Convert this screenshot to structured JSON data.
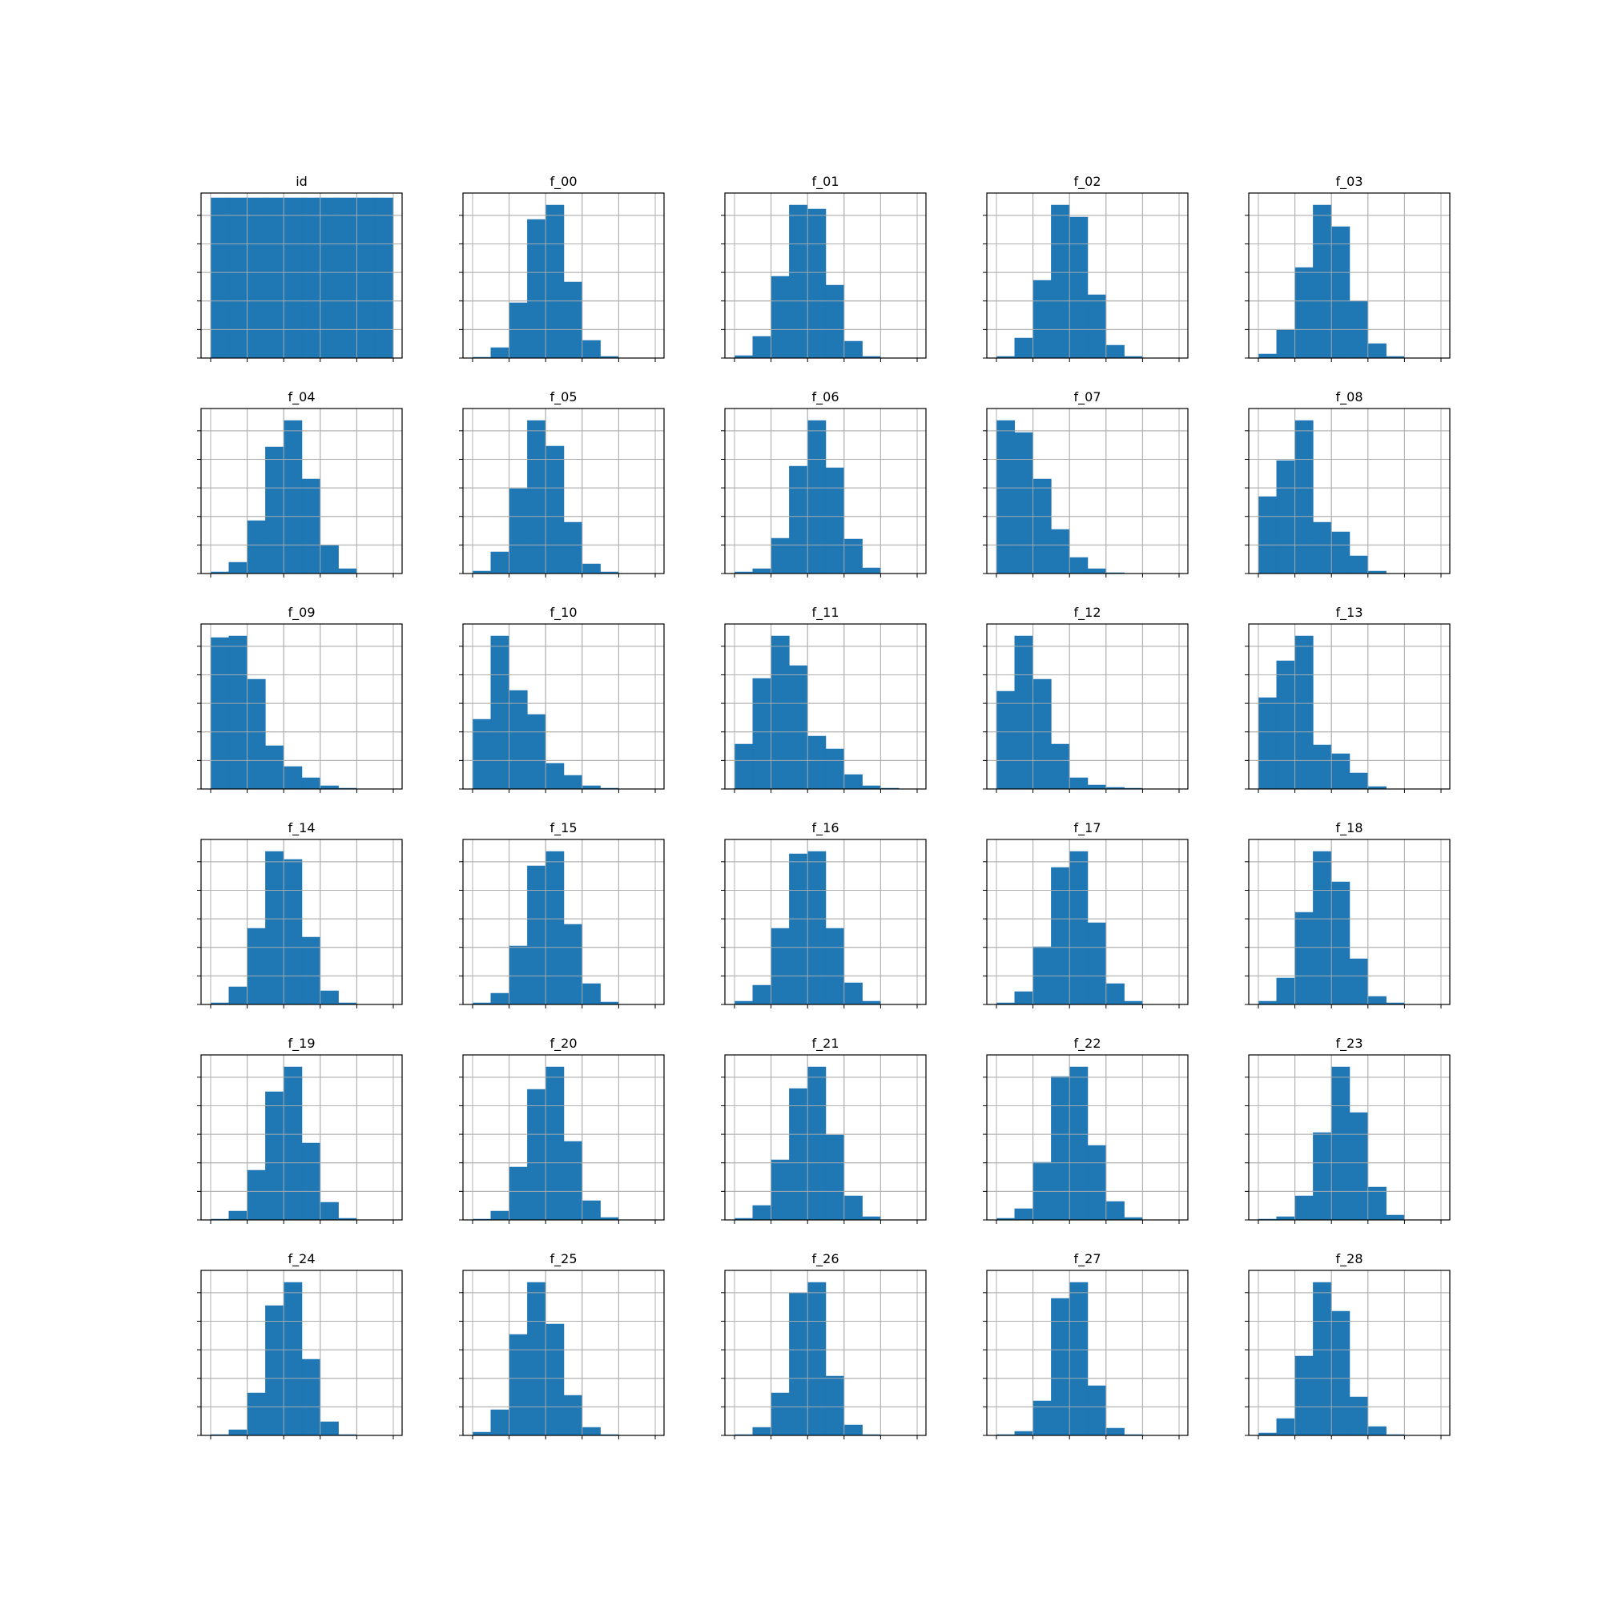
{
  "bar_color": "#1f77b4",
  "grid_color": "#b0b0b0",
  "chart_data": [
    {
      "type": "bar",
      "title": "id",
      "values": [
        1,
        1,
        1,
        1,
        1,
        1,
        1,
        1,
        1,
        1
      ],
      "grid": true
    },
    {
      "type": "bar",
      "title": "f_00",
      "values": [
        0.005,
        0.065,
        0.345,
        0.865,
        0.955,
        0.475,
        0.11,
        0.01,
        0,
        0
      ],
      "grid": true
    },
    {
      "type": "bar",
      "title": "f_01",
      "values": [
        0.015,
        0.135,
        0.51,
        0.955,
        0.93,
        0.455,
        0.105,
        0.01,
        0,
        0
      ],
      "grid": true
    },
    {
      "type": "bar",
      "title": "f_02",
      "values": [
        0.01,
        0.125,
        0.485,
        0.955,
        0.88,
        0.395,
        0.08,
        0.01,
        0,
        0
      ],
      "grid": true
    },
    {
      "type": "bar",
      "title": "f_03",
      "values": [
        0.025,
        0.175,
        0.565,
        0.955,
        0.82,
        0.355,
        0.09,
        0.01,
        0,
        0
      ],
      "grid": true
    },
    {
      "type": "bar",
      "title": "f_04",
      "values": [
        0.01,
        0.07,
        0.33,
        0.79,
        0.955,
        0.59,
        0.175,
        0.03,
        0,
        0
      ],
      "grid": true
    },
    {
      "type": "bar",
      "title": "f_05",
      "values": [
        0.015,
        0.135,
        0.53,
        0.955,
        0.795,
        0.32,
        0.06,
        0.01,
        0,
        0
      ],
      "grid": true
    },
    {
      "type": "bar",
      "title": "f_06",
      "values": [
        0.01,
        0.03,
        0.22,
        0.67,
        0.955,
        0.66,
        0.215,
        0.035,
        0,
        0
      ],
      "grid": true
    },
    {
      "type": "bar",
      "title": "f_07",
      "values": [
        0.955,
        0.88,
        0.59,
        0.275,
        0.1,
        0.03,
        0.005,
        0,
        0,
        0
      ],
      "grid": true
    },
    {
      "type": "bar",
      "title": "f_08",
      "values": [
        0.48,
        0.705,
        0.955,
        0.32,
        0.26,
        0.11,
        0.015,
        0,
        0,
        0
      ],
      "grid": true
    },
    {
      "type": "bar",
      "title": "f_09",
      "values": [
        0.945,
        0.955,
        0.685,
        0.27,
        0.14,
        0.07,
        0.02,
        0.005,
        0,
        0
      ],
      "grid": true
    },
    {
      "type": "bar",
      "title": "f_10",
      "values": [
        0.435,
        0.955,
        0.615,
        0.465,
        0.16,
        0.085,
        0.02,
        0.005,
        0,
        0
      ],
      "grid": true
    },
    {
      "type": "bar",
      "title": "f_11",
      "values": [
        0.28,
        0.69,
        0.955,
        0.77,
        0.33,
        0.25,
        0.09,
        0.02,
        0.005,
        0
      ],
      "grid": true
    },
    {
      "type": "bar",
      "title": "f_12",
      "values": [
        0.61,
        0.955,
        0.685,
        0.28,
        0.07,
        0.025,
        0.01,
        0.005,
        0,
        0
      ],
      "grid": true
    },
    {
      "type": "bar",
      "title": "f_13",
      "values": [
        0.57,
        0.8,
        0.955,
        0.275,
        0.22,
        0.1,
        0.015,
        0,
        0,
        0
      ],
      "grid": true
    },
    {
      "type": "bar",
      "title": "f_14",
      "values": [
        0.01,
        0.11,
        0.475,
        0.955,
        0.905,
        0.42,
        0.085,
        0.01,
        0,
        0
      ],
      "grid": true
    },
    {
      "type": "bar",
      "title": "f_15",
      "values": [
        0.01,
        0.07,
        0.365,
        0.865,
        0.955,
        0.5,
        0.13,
        0.015,
        0,
        0
      ],
      "grid": true
    },
    {
      "type": "bar",
      "title": "f_16",
      "values": [
        0.02,
        0.12,
        0.475,
        0.94,
        0.955,
        0.475,
        0.135,
        0.02,
        0,
        0
      ],
      "grid": true
    },
    {
      "type": "bar",
      "title": "f_17",
      "values": [
        0.01,
        0.08,
        0.36,
        0.855,
        0.955,
        0.51,
        0.13,
        0.02,
        0,
        0
      ],
      "grid": true
    },
    {
      "type": "bar",
      "title": "f_18",
      "values": [
        0.02,
        0.165,
        0.575,
        0.955,
        0.765,
        0.285,
        0.05,
        0.01,
        0,
        0
      ],
      "grid": true
    },
    {
      "type": "bar",
      "title": "f_19",
      "values": [
        0.005,
        0.055,
        0.31,
        0.8,
        0.955,
        0.48,
        0.11,
        0.01,
        0,
        0
      ],
      "grid": true
    },
    {
      "type": "bar",
      "title": "f_20",
      "values": [
        0.005,
        0.055,
        0.33,
        0.815,
        0.955,
        0.49,
        0.12,
        0.015,
        0,
        0
      ],
      "grid": true
    },
    {
      "type": "bar",
      "title": "f_21",
      "values": [
        0.01,
        0.09,
        0.375,
        0.82,
        0.955,
        0.53,
        0.15,
        0.02,
        0,
        0
      ],
      "grid": true
    },
    {
      "type": "bar",
      "title": "f_22",
      "values": [
        0.01,
        0.07,
        0.36,
        0.895,
        0.955,
        0.465,
        0.115,
        0.015,
        0,
        0
      ],
      "grid": true
    },
    {
      "type": "bar",
      "title": "f_23",
      "values": [
        0.005,
        0.02,
        0.15,
        0.545,
        0.955,
        0.67,
        0.205,
        0.03,
        0,
        0
      ],
      "grid": true
    },
    {
      "type": "bar",
      "title": "f_24",
      "values": [
        0.005,
        0.035,
        0.265,
        0.81,
        0.955,
        0.475,
        0.085,
        0.005,
        0,
        0
      ],
      "grid": true
    },
    {
      "type": "bar",
      "title": "f_25",
      "values": [
        0.02,
        0.16,
        0.63,
        0.955,
        0.695,
        0.25,
        0.05,
        0.005,
        0,
        0
      ],
      "grid": true
    },
    {
      "type": "bar",
      "title": "f_26",
      "values": [
        0.005,
        0.05,
        0.265,
        0.89,
        0.955,
        0.37,
        0.065,
        0.005,
        0,
        0
      ],
      "grid": true
    },
    {
      "type": "bar",
      "title": "f_27",
      "values": [
        0.005,
        0.025,
        0.215,
        0.855,
        0.955,
        0.31,
        0.045,
        0.005,
        0,
        0
      ],
      "grid": true
    },
    {
      "type": "bar",
      "title": "f_28",
      "values": [
        0.015,
        0.105,
        0.495,
        0.955,
        0.775,
        0.24,
        0.055,
        0.005,
        0,
        0
      ],
      "grid": true
    }
  ]
}
